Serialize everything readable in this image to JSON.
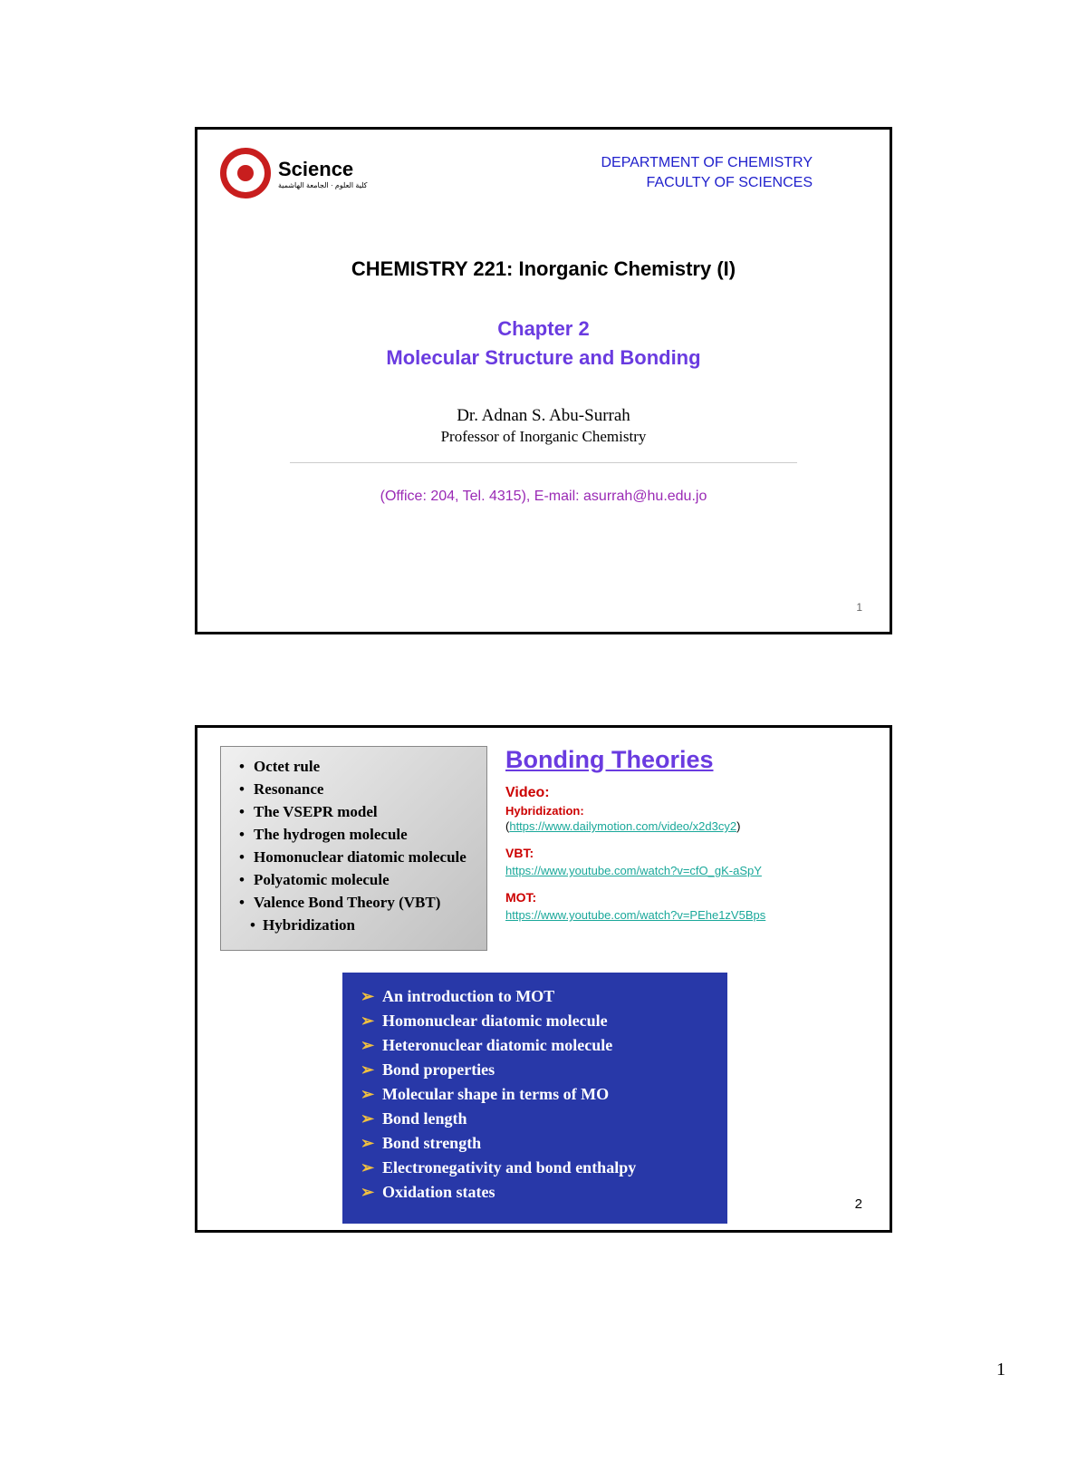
{
  "slide1": {
    "dept_line1": "DEPARTMENT OF CHEMISTRY",
    "dept_line2": "FACULTY OF SCIENCES",
    "science_word": "Science",
    "course_title": "CHEMISTRY 221: Inorganic Chemistry (I)",
    "chapter": "Chapter 2",
    "chapter_sub": "Molecular Structure and Bonding",
    "prof_name": "Dr. Adnan S. Abu-Surrah",
    "prof_title": "Professor of Inorganic Chemistry",
    "contact": "(Office: 204, Tel. 4315), E-mail: asurrah@hu.edu.jo",
    "slide_num": "1"
  },
  "slide2": {
    "topics": [
      "Octet rule",
      "Resonance",
      "The VSEPR model",
      "The hydrogen molecule",
      "Homonuclear diatomic molecule",
      "Polyatomic molecule",
      "Valence Bond Theory (VBT)"
    ],
    "topics_sub": "Hybridization",
    "bonding_title": "Bonding Theories",
    "video_label": "Video:",
    "hyb_label": "Hybridization:",
    "video_url": "https://www.dailymotion.com/video/x2d3cy2",
    "vbt_label": "VBT:",
    "vbt_url": "https://www.youtube.com/watch?v=cfO_gK-aSpY",
    "mot_label": "MOT:",
    "mot_url": "https://www.youtube.com/watch?v=PEhe1zV5Bps",
    "mot_items": [
      "An introduction to MOT",
      "Homonuclear diatomic molecule",
      "Heteronuclear diatomic molecule",
      "Bond properties",
      "Molecular shape in terms of MO",
      "Bond length",
      "Bond strength",
      "Electronegativity and bond enthalpy",
      "Oxidation states"
    ],
    "slide_num": "2"
  },
  "page_number": "1",
  "colors": {
    "dept_blue": "#2020cc",
    "chapter_purple": "#6a3be0",
    "contact_purple": "#9a2ab5",
    "video_red": "#cc0000",
    "link_teal": "#1aa89a",
    "mot_box_bg": "#2838a8",
    "mot_arrow": "#f0c040",
    "logo_red": "#c81e1e"
  }
}
